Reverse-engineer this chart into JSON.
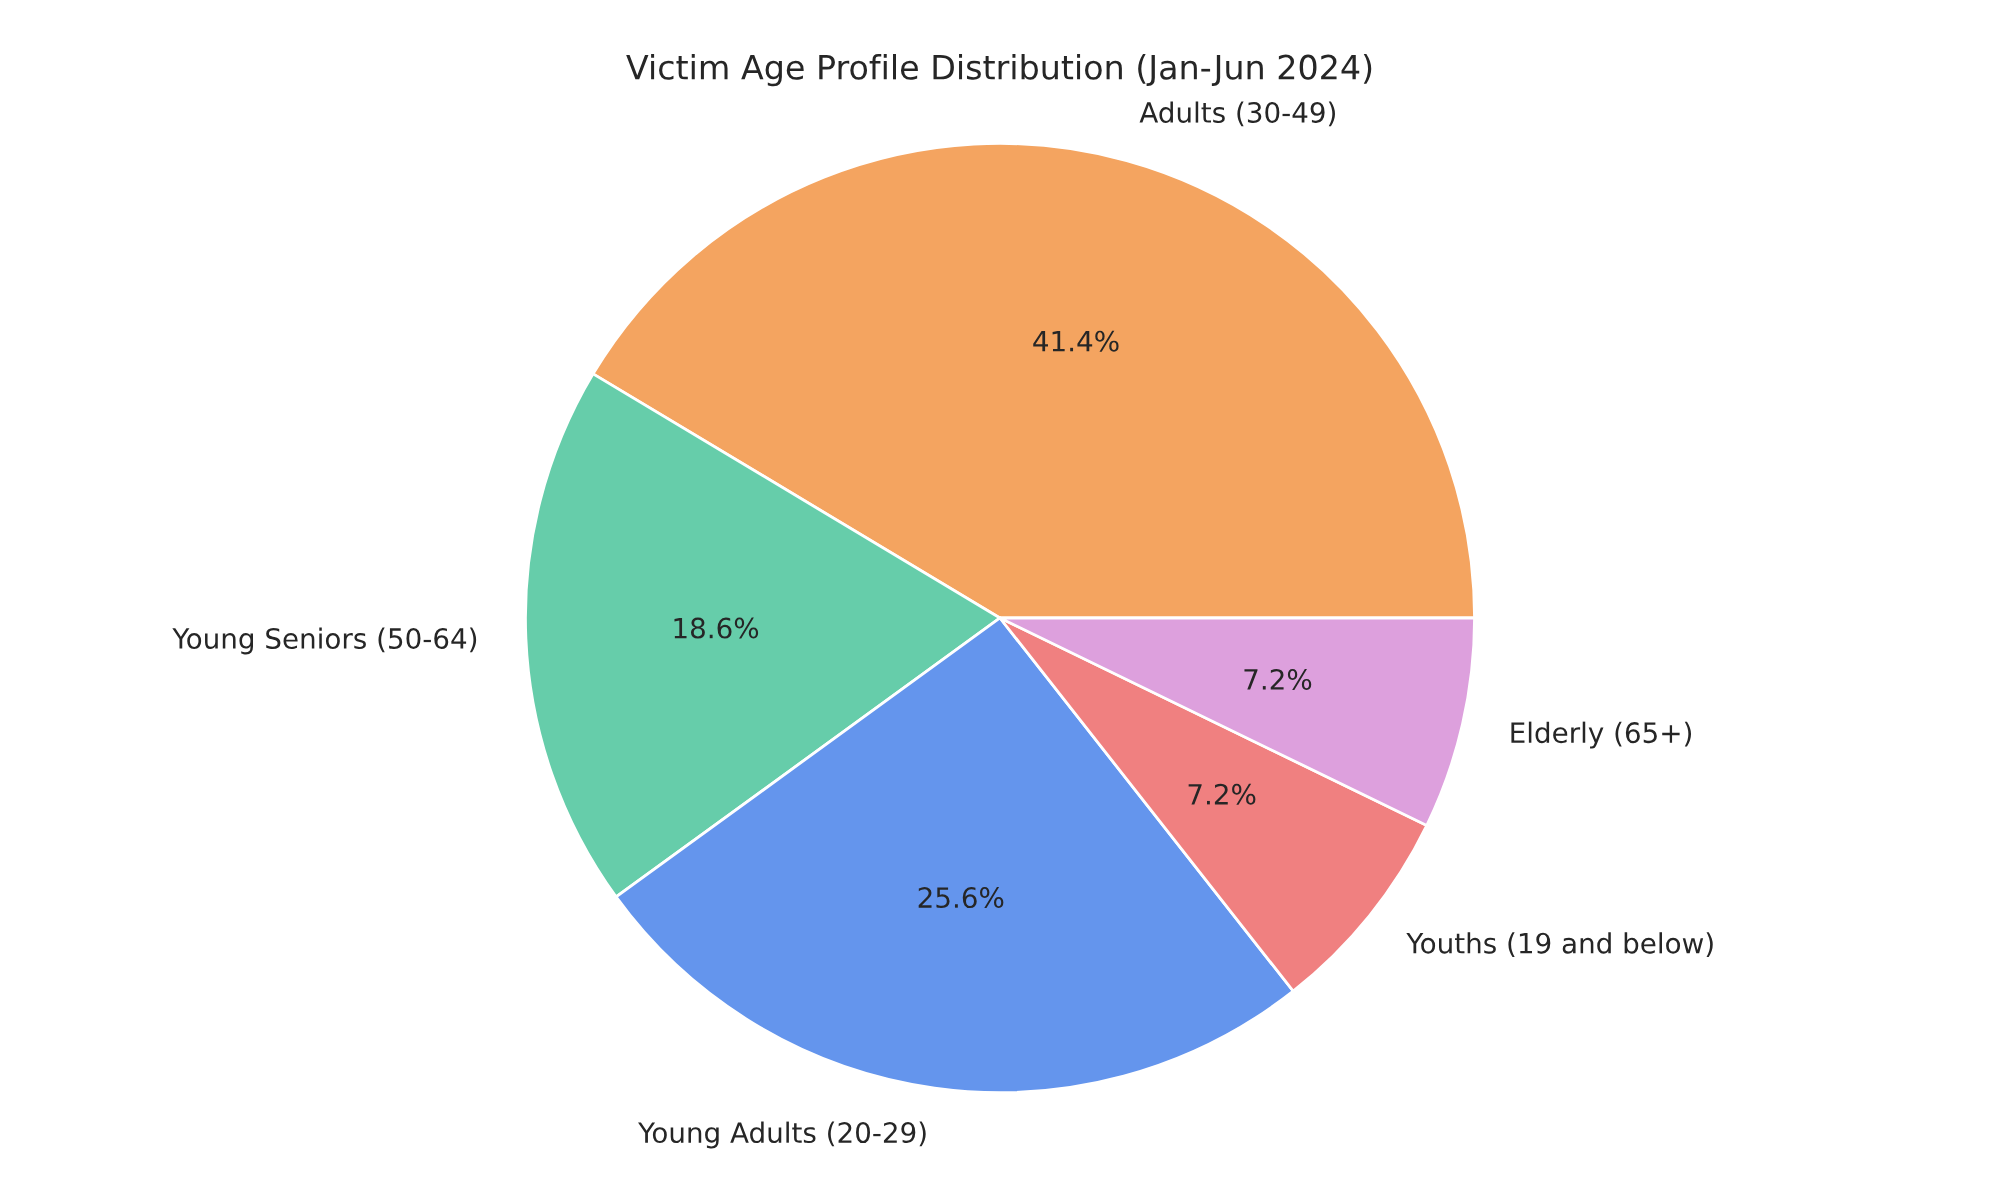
{
  "chart_data": {
    "type": "pie",
    "title": "Victim Age Profile Distribution (Jan-Jun 2024)",
    "categories": [
      "Adults (30-49)",
      "Young Seniors (50-64)",
      "Young Adults (20-29)",
      "Youths (19 and below)",
      "Elderly (65+)"
    ],
    "values": [
      41.4,
      18.6,
      25.6,
      7.2,
      7.2
    ],
    "value_labels": [
      "41.4%",
      "18.6%",
      "25.6%",
      "7.2%",
      "7.2%"
    ],
    "colors": [
      "#f4a460",
      "#66cdaa",
      "#6495ed",
      "#f08080",
      "#dda0dd"
    ]
  }
}
